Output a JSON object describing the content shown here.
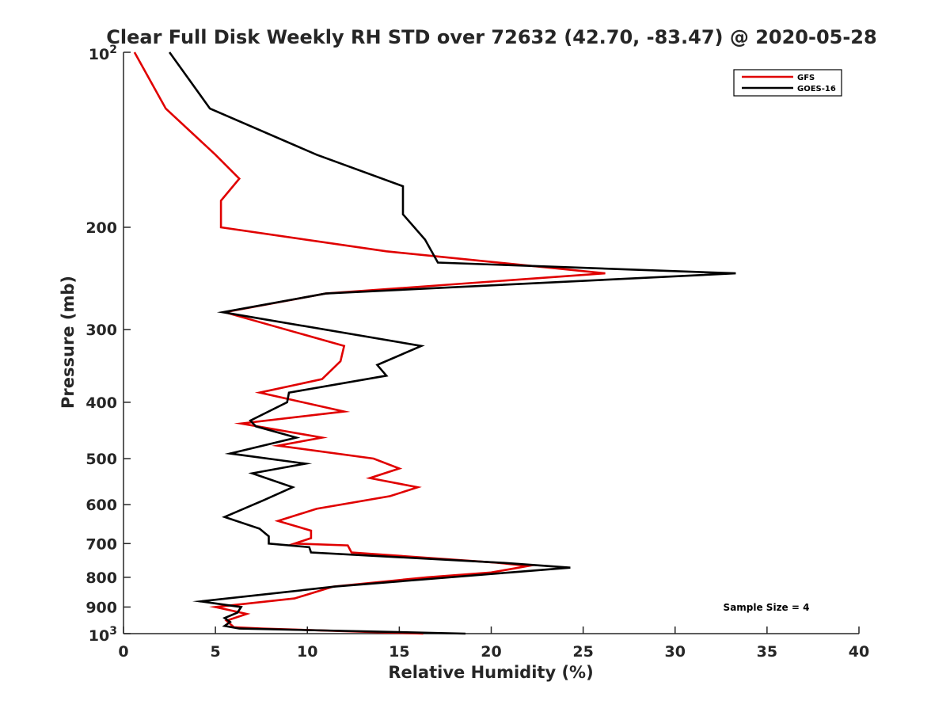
{
  "chart_data": {
    "type": "line",
    "title": "Clear Full Disk Weekly RH STD over 72632 (42.70, -83.47) @ 2020-05-28",
    "xlabel": "Relative Humidity (%)",
    "ylabel": "Pressure (mb)",
    "xlim": [
      0,
      40
    ],
    "ylim": [
      100,
      1000
    ],
    "y_scale": "log",
    "y_reversed": true,
    "x_ticks": [
      0,
      5,
      10,
      15,
      20,
      25,
      30,
      35,
      40
    ],
    "x_tick_labels": [
      "0",
      "5",
      "10",
      "15",
      "20",
      "25",
      "30",
      "35",
      "40"
    ],
    "y_ticks": [
      200,
      300,
      400,
      500,
      600,
      700,
      800,
      900
    ],
    "y_tick_labels": [
      "200",
      "300",
      "400",
      "500",
      "600",
      "700",
      "800",
      "900"
    ],
    "y_end_ticks": [
      {
        "value": 100,
        "base": "10",
        "exp": "2"
      },
      {
        "value": 1000,
        "base": "10",
        "exp": "3"
      }
    ],
    "grid": false,
    "legend_position": "top-right",
    "annotation": "Sample Size = 4",
    "series": [
      {
        "name": "GFS",
        "color": "#e00000",
        "points": [
          [
            0.6,
            100
          ],
          [
            2.3,
            125
          ],
          [
            5.0,
            150
          ],
          [
            6.3,
            165
          ],
          [
            5.3,
            180
          ],
          [
            5.3,
            200
          ],
          [
            14.3,
            220
          ],
          [
            26.2,
            240
          ],
          [
            11.0,
            260
          ],
          [
            5.5,
            280
          ],
          [
            12.0,
            320
          ],
          [
            11.8,
            340
          ],
          [
            10.8,
            365
          ],
          [
            7.4,
            385
          ],
          [
            12.0,
            415
          ],
          [
            6.4,
            435
          ],
          [
            10.8,
            460
          ],
          [
            8.4,
            475
          ],
          [
            13.6,
            500
          ],
          [
            15.0,
            520
          ],
          [
            13.4,
            540
          ],
          [
            16.0,
            560
          ],
          [
            14.5,
            580
          ],
          [
            10.5,
            610
          ],
          [
            8.4,
            640
          ],
          [
            10.2,
            665
          ],
          [
            10.2,
            685
          ],
          [
            9.3,
            700
          ],
          [
            12.2,
            705
          ],
          [
            12.4,
            725
          ],
          [
            20.3,
            755
          ],
          [
            22.0,
            765
          ],
          [
            20.0,
            785
          ],
          [
            16.5,
            800
          ],
          [
            11.4,
            830
          ],
          [
            9.3,
            870
          ],
          [
            5.0,
            900
          ],
          [
            6.7,
            925
          ],
          [
            5.6,
            950
          ],
          [
            6.0,
            975
          ],
          [
            7.5,
            980
          ],
          [
            16.3,
            1000
          ]
        ]
      },
      {
        "name": "GOES-16",
        "color": "#000000",
        "points": [
          [
            2.5,
            100
          ],
          [
            4.7,
            125
          ],
          [
            10.5,
            150
          ],
          [
            15.2,
            170
          ],
          [
            15.2,
            190
          ],
          [
            16.4,
            210
          ],
          [
            17.1,
            230
          ],
          [
            33.3,
            240
          ],
          [
            11.0,
            260
          ],
          [
            5.4,
            280
          ],
          [
            16.2,
            320
          ],
          [
            13.8,
            345
          ],
          [
            14.3,
            360
          ],
          [
            9.0,
            385
          ],
          [
            8.9,
            400
          ],
          [
            6.9,
            430
          ],
          [
            7.2,
            440
          ],
          [
            9.4,
            460
          ],
          [
            5.8,
            490
          ],
          [
            9.9,
            510
          ],
          [
            7.0,
            530
          ],
          [
            9.2,
            560
          ],
          [
            7.6,
            590
          ],
          [
            5.5,
            630
          ],
          [
            7.4,
            660
          ],
          [
            7.9,
            680
          ],
          [
            7.9,
            700
          ],
          [
            10.1,
            710
          ],
          [
            10.2,
            725
          ],
          [
            20.5,
            755
          ],
          [
            24.3,
            770
          ],
          [
            21.0,
            785
          ],
          [
            11.5,
            830
          ],
          [
            4.2,
            880
          ],
          [
            6.4,
            900
          ],
          [
            6.2,
            920
          ],
          [
            5.5,
            940
          ],
          [
            5.8,
            955
          ],
          [
            5.5,
            970
          ],
          [
            6.3,
            980
          ],
          [
            18.6,
            1000
          ]
        ]
      }
    ]
  }
}
